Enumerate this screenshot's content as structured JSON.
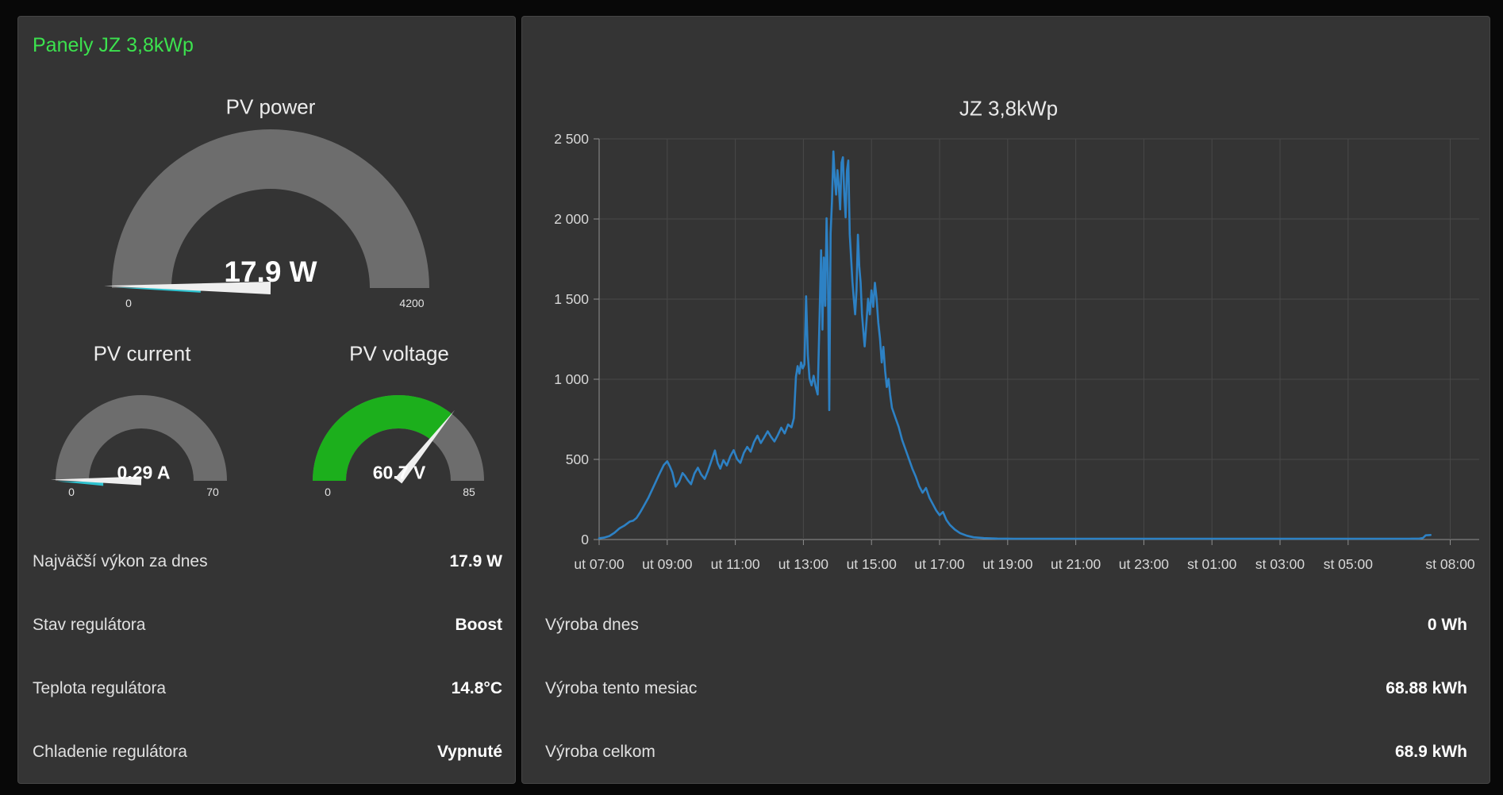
{
  "page": {
    "background": "#080808"
  },
  "colors": {
    "card_bg": "#343434",
    "accent_green": "#3ce24e",
    "gauge_track": "#6d6d6d",
    "gauge_green": "#1caf1c",
    "gauge_value_cyan": "#2ec2cf",
    "needle": "#efefef",
    "line_blue": "#2d81c4",
    "grid": "#484848",
    "axis": "#8f8f8f",
    "tick_text": "#d8d8d8"
  },
  "left_card": {
    "title": "Panely JZ 3,8kWp",
    "gauges": [
      {
        "name": "pv-power",
        "label": "PV power",
        "value": 17.9,
        "value_text": "17.9 W",
        "min": 0,
        "max": 4200,
        "min_label": "0",
        "max_label": "4200",
        "style": "needle-gray"
      },
      {
        "name": "pv-current",
        "label": "PV current",
        "value": 0.29,
        "value_text": "0.29 A",
        "min": 0,
        "max": 70,
        "min_label": "0",
        "max_label": "70",
        "style": "needle-gray"
      },
      {
        "name": "pv-voltage",
        "label": "PV voltage",
        "value": 60.7,
        "value_text": "60.7 V",
        "min": 0,
        "max": 85,
        "min_label": "0",
        "max_label": "85",
        "style": "needle-green"
      }
    ],
    "rows": [
      {
        "label": "Najväčší výkon za dnes",
        "value": "17.9 W"
      },
      {
        "label": "Stav regulátora",
        "value": "Boost"
      },
      {
        "label": "Teplota regulátora",
        "value": "14.8°C"
      },
      {
        "label": "Chladenie regulátora",
        "value": "Vypnuté"
      }
    ]
  },
  "right_card": {
    "rows": [
      {
        "label": "Výroba dnes",
        "value": "0 Wh"
      },
      {
        "label": "Výroba tento mesiac",
        "value": "68.88 kWh"
      },
      {
        "label": "Výroba celkom",
        "value": "68.9 kWh"
      }
    ]
  },
  "chart_data": {
    "type": "line",
    "title": "JZ 3,8kWp",
    "xlabel": "",
    "ylabel": "",
    "ylim": [
      0,
      2500
    ],
    "grid": true,
    "legend": "none",
    "y_ticks": [
      {
        "v": 0,
        "label": "0"
      },
      {
        "v": 500,
        "label": "500"
      },
      {
        "v": 1000,
        "label": "1 000"
      },
      {
        "v": 1500,
        "label": "1 500"
      },
      {
        "v": 2000,
        "label": "2 000"
      },
      {
        "v": 2500,
        "label": "2 500"
      }
    ],
    "x_ticks": [
      {
        "h": 7,
        "label": "ut 07:00"
      },
      {
        "h": 9,
        "label": "ut 09:00"
      },
      {
        "h": 11,
        "label": "ut 11:00"
      },
      {
        "h": 13,
        "label": "ut 13:00"
      },
      {
        "h": 15,
        "label": "ut 15:00"
      },
      {
        "h": 17,
        "label": "ut 17:00"
      },
      {
        "h": 19,
        "label": "ut 19:00"
      },
      {
        "h": 21,
        "label": "ut 21:00"
      },
      {
        "h": 23,
        "label": "ut 23:00"
      },
      {
        "h": 25,
        "label": "st 01:00"
      },
      {
        "h": 27,
        "label": "st 03:00"
      },
      {
        "h": 29,
        "label": "st 05:00"
      },
      {
        "h": 32,
        "label": "st 08:00"
      }
    ],
    "x_range_hours": [
      7,
      32.85
    ],
    "series": [
      {
        "name": "JZ 3,8kWp",
        "unit": "W",
        "color": "#2d81c4",
        "points": [
          [
            7.0,
            8
          ],
          [
            7.15,
            12
          ],
          [
            7.3,
            22
          ],
          [
            7.45,
            42
          ],
          [
            7.6,
            70
          ],
          [
            7.75,
            88
          ],
          [
            7.9,
            112
          ],
          [
            8.0,
            118
          ],
          [
            8.1,
            135
          ],
          [
            8.2,
            168
          ],
          [
            8.3,
            205
          ],
          [
            8.45,
            262
          ],
          [
            8.6,
            330
          ],
          [
            8.75,
            400
          ],
          [
            8.9,
            465
          ],
          [
            9.0,
            488
          ],
          [
            9.08,
            455
          ],
          [
            9.15,
            420
          ],
          [
            9.25,
            330
          ],
          [
            9.35,
            360
          ],
          [
            9.45,
            415
          ],
          [
            9.52,
            398
          ],
          [
            9.6,
            372
          ],
          [
            9.7,
            345
          ],
          [
            9.8,
            412
          ],
          [
            9.9,
            448
          ],
          [
            10.0,
            405
          ],
          [
            10.1,
            378
          ],
          [
            10.2,
            430
          ],
          [
            10.3,
            492
          ],
          [
            10.4,
            556
          ],
          [
            10.48,
            478
          ],
          [
            10.56,
            442
          ],
          [
            10.65,
            495
          ],
          [
            10.75,
            462
          ],
          [
            10.85,
            518
          ],
          [
            10.95,
            558
          ],
          [
            11.05,
            502
          ],
          [
            11.15,
            478
          ],
          [
            11.25,
            540
          ],
          [
            11.35,
            578
          ],
          [
            11.45,
            548
          ],
          [
            11.55,
            608
          ],
          [
            11.65,
            648
          ],
          [
            11.75,
            602
          ],
          [
            11.85,
            638
          ],
          [
            11.95,
            675
          ],
          [
            12.05,
            640
          ],
          [
            12.15,
            612
          ],
          [
            12.25,
            652
          ],
          [
            12.35,
            698
          ],
          [
            12.45,
            662
          ],
          [
            12.55,
            718
          ],
          [
            12.65,
            700
          ],
          [
            12.72,
            758
          ],
          [
            12.78,
            1015
          ],
          [
            12.83,
            1082
          ],
          [
            12.88,
            1035
          ],
          [
            12.93,
            1105
          ],
          [
            12.98,
            1068
          ],
          [
            13.03,
            1092
          ],
          [
            13.08,
            1518
          ],
          [
            13.13,
            1152
          ],
          [
            13.18,
            1005
          ],
          [
            13.24,
            962
          ],
          [
            13.3,
            1022
          ],
          [
            13.36,
            952
          ],
          [
            13.42,
            905
          ],
          [
            13.47,
            1352
          ],
          [
            13.52,
            1805
          ],
          [
            13.56,
            1310
          ],
          [
            13.6,
            1760
          ],
          [
            13.64,
            1458
          ],
          [
            13.68,
            2005
          ],
          [
            13.72,
            1660
          ],
          [
            13.76,
            808
          ],
          [
            13.8,
            1910
          ],
          [
            13.84,
            2110
          ],
          [
            13.88,
            2422
          ],
          [
            13.92,
            2258
          ],
          [
            13.96,
            2152
          ],
          [
            14.0,
            2305
          ],
          [
            14.04,
            2208
          ],
          [
            14.08,
            2060
          ],
          [
            14.12,
            2352
          ],
          [
            14.16,
            2385
          ],
          [
            14.2,
            2155
          ],
          [
            14.24,
            2010
          ],
          [
            14.28,
            2302
          ],
          [
            14.32,
            2365
          ],
          [
            14.36,
            1905
          ],
          [
            14.4,
            1758
          ],
          [
            14.44,
            1608
          ],
          [
            14.48,
            1502
          ],
          [
            14.52,
            1405
          ],
          [
            14.56,
            1552
          ],
          [
            14.6,
            1902
          ],
          [
            14.64,
            1705
          ],
          [
            14.68,
            1605
          ],
          [
            14.72,
            1408
          ],
          [
            14.76,
            1302
          ],
          [
            14.8,
            1205
          ],
          [
            14.85,
            1352
          ],
          [
            14.9,
            1502
          ],
          [
            14.95,
            1405
          ],
          [
            15.0,
            1555
          ],
          [
            15.05,
            1452
          ],
          [
            15.1,
            1602
          ],
          [
            15.15,
            1505
          ],
          [
            15.2,
            1352
          ],
          [
            15.25,
            1255
          ],
          [
            15.3,
            1105
          ],
          [
            15.35,
            1202
          ],
          [
            15.4,
            1052
          ],
          [
            15.45,
            952
          ],
          [
            15.5,
            1002
          ],
          [
            15.55,
            902
          ],
          [
            15.6,
            822
          ],
          [
            15.7,
            762
          ],
          [
            15.8,
            702
          ],
          [
            15.9,
            622
          ],
          [
            16.0,
            562
          ],
          [
            16.1,
            502
          ],
          [
            16.2,
            442
          ],
          [
            16.3,
            392
          ],
          [
            16.4,
            332
          ],
          [
            16.5,
            292
          ],
          [
            16.6,
            322
          ],
          [
            16.7,
            262
          ],
          [
            16.8,
            222
          ],
          [
            16.9,
            182
          ],
          [
            17.0,
            152
          ],
          [
            17.1,
            172
          ],
          [
            17.2,
            122
          ],
          [
            17.3,
            92
          ],
          [
            17.45,
            62
          ],
          [
            17.6,
            40
          ],
          [
            17.8,
            24
          ],
          [
            18.0,
            14
          ],
          [
            18.3,
            9
          ],
          [
            18.7,
            6
          ],
          [
            19.2,
            5
          ],
          [
            20.0,
            5
          ],
          [
            21.0,
            5
          ],
          [
            22.0,
            5
          ],
          [
            23.0,
            5
          ],
          [
            24.0,
            5
          ],
          [
            25.0,
            5
          ],
          [
            26.0,
            5
          ],
          [
            27.0,
            5
          ],
          [
            28.0,
            5
          ],
          [
            29.0,
            5
          ],
          [
            30.0,
            5
          ],
          [
            30.8,
            5
          ],
          [
            31.1,
            6
          ],
          [
            31.2,
            10
          ],
          [
            31.28,
            26
          ],
          [
            31.42,
            28
          ]
        ]
      }
    ]
  }
}
